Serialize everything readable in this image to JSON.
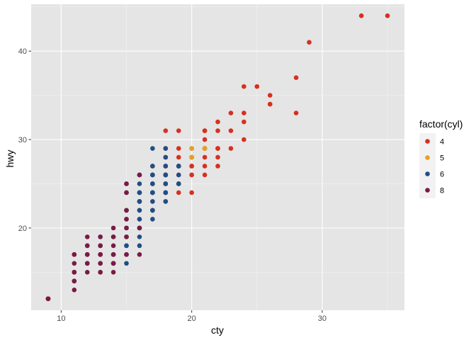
{
  "chart_data": {
    "type": "scatter",
    "title": "",
    "xlabel": "cty",
    "ylabel": "hwy",
    "xlim": [
      7.7,
      36.3
    ],
    "ylim": [
      10.7,
      45.3
    ],
    "x_ticks": [
      10,
      20,
      30
    ],
    "y_ticks": [
      20,
      30,
      40
    ],
    "x_tick_labels": [
      "10",
      "20",
      "30"
    ],
    "y_tick_labels": [
      "20",
      "30",
      "40"
    ],
    "grid": true,
    "background": "#e5e5e5",
    "grid_color": "#ffffff",
    "legend": {
      "title": "factor(cyl)",
      "position": "right",
      "labels": [
        "4",
        "5",
        "6",
        "8"
      ],
      "colors": [
        "#d7301f",
        "#e6a023",
        "#1f4e85",
        "#7a1a45"
      ]
    },
    "series": [
      {
        "name": "4",
        "color": "#d7301f",
        "points": [
          [
            35,
            44
          ],
          [
            33,
            44
          ],
          [
            29,
            41
          ],
          [
            28,
            37
          ],
          [
            26,
            35
          ],
          [
            25,
            36
          ],
          [
            26,
            34
          ],
          [
            24,
            36
          ],
          [
            24,
            33
          ],
          [
            23,
            33
          ],
          [
            22,
            32
          ],
          [
            24,
            32
          ],
          [
            26,
            34
          ],
          [
            28,
            33
          ],
          [
            24,
            30
          ],
          [
            21,
            31
          ],
          [
            21,
            30
          ],
          [
            22,
            31
          ],
          [
            22,
            29
          ],
          [
            21,
            29
          ],
          [
            20,
            29
          ],
          [
            21,
            28
          ],
          [
            20,
            28
          ],
          [
            22,
            29
          ],
          [
            23,
            31
          ],
          [
            20,
            27
          ],
          [
            21,
            27
          ],
          [
            19,
            27
          ],
          [
            18,
            26
          ],
          [
            19,
            26
          ],
          [
            18,
            27
          ],
          [
            19,
            29
          ],
          [
            20,
            26
          ],
          [
            18,
            25
          ],
          [
            19,
            25
          ],
          [
            17,
            27
          ],
          [
            18,
            29
          ],
          [
            19,
            31
          ],
          [
            21,
            26
          ],
          [
            22,
            27
          ],
          [
            18,
            24
          ],
          [
            17,
            23
          ],
          [
            17,
            22
          ],
          [
            18,
            23
          ],
          [
            19,
            24
          ],
          [
            20,
            24
          ],
          [
            16,
            20
          ],
          [
            18,
            26
          ],
          [
            19,
            28
          ],
          [
            21,
            29
          ],
          [
            20,
            27
          ],
          [
            22,
            28
          ],
          [
            18,
            31
          ],
          [
            21,
            29
          ],
          [
            23,
            29
          ],
          [
            20,
            28
          ],
          [
            17,
            24
          ],
          [
            16,
            21
          ],
          [
            18,
            27
          ],
          [
            21,
            31
          ],
          [
            19,
            27
          ],
          [
            18,
            25
          ],
          [
            19,
            25
          ],
          [
            18,
            26
          ],
          [
            22,
            29
          ],
          [
            20,
            26
          ]
        ]
      },
      {
        "name": "5",
        "color": "#e6a023",
        "points": [
          [
            20,
            29
          ],
          [
            20,
            28
          ],
          [
            21,
            29
          ],
          [
            21,
            29
          ]
        ]
      },
      {
        "name": "6",
        "color": "#1f4e85",
        "points": [
          [
            18,
            29
          ],
          [
            18,
            28
          ],
          [
            18,
            27
          ],
          [
            17,
            26
          ],
          [
            16,
            25
          ],
          [
            17,
            24
          ],
          [
            18,
            26
          ],
          [
            19,
            27
          ],
          [
            17,
            25
          ],
          [
            18,
            25
          ],
          [
            19,
            25
          ],
          [
            17,
            26
          ],
          [
            16,
            26
          ],
          [
            16,
            24
          ],
          [
            15,
            24
          ],
          [
            15,
            25
          ],
          [
            16,
            23
          ],
          [
            17,
            24
          ],
          [
            18,
            24
          ],
          [
            18,
            23
          ],
          [
            17,
            22
          ],
          [
            16,
            22
          ],
          [
            15,
            22
          ],
          [
            15,
            21
          ],
          [
            16,
            21
          ],
          [
            16,
            20
          ],
          [
            17,
            21
          ],
          [
            15,
            20
          ],
          [
            15,
            19
          ],
          [
            16,
            19
          ],
          [
            15,
            18
          ],
          [
            14,
            17
          ],
          [
            15,
            17
          ],
          [
            14,
            16
          ],
          [
            13,
            16
          ],
          [
            16,
            18
          ],
          [
            16,
            24
          ],
          [
            17,
            27
          ],
          [
            18,
            26
          ],
          [
            17,
            29
          ],
          [
            19,
            27
          ],
          [
            18,
            26
          ],
          [
            18,
            24
          ],
          [
            17,
            24
          ],
          [
            17,
            23
          ],
          [
            16,
            23
          ],
          [
            16,
            22
          ],
          [
            15,
            18
          ],
          [
            14,
            17
          ],
          [
            13,
            17
          ],
          [
            14,
            19
          ],
          [
            13,
            19
          ],
          [
            12,
            17
          ],
          [
            14,
            16
          ],
          [
            15,
            16
          ],
          [
            13,
            18
          ],
          [
            16,
            20
          ],
          [
            17,
            22
          ],
          [
            18,
            25
          ],
          [
            17,
            25
          ],
          [
            16,
            26
          ],
          [
            17,
            26
          ],
          [
            18,
            28
          ],
          [
            19,
            26
          ],
          [
            19,
            25
          ],
          [
            18,
            24
          ],
          [
            17,
            22
          ],
          [
            16,
            23
          ],
          [
            15,
            22
          ],
          [
            16,
            24
          ],
          [
            17,
            25
          ],
          [
            17,
            26
          ],
          [
            18,
            26
          ],
          [
            17,
            24
          ],
          [
            16,
            23
          ]
        ]
      },
      {
        "name": "8",
        "color": "#7a1a45",
        "points": [
          [
            9,
            12
          ],
          [
            9,
            12
          ],
          [
            9,
            12
          ],
          [
            9,
            12
          ],
          [
            9,
            12
          ],
          [
            11,
            15
          ],
          [
            11,
            15
          ],
          [
            11,
            14
          ],
          [
            11,
            14
          ],
          [
            11,
            15
          ],
          [
            11,
            15
          ],
          [
            11,
            16
          ],
          [
            11,
            17
          ],
          [
            11,
            17
          ],
          [
            11,
            17
          ],
          [
            12,
            17
          ],
          [
            12,
            16
          ],
          [
            12,
            18
          ],
          [
            12,
            17
          ],
          [
            12,
            17
          ],
          [
            12,
            16
          ],
          [
            13,
            18
          ],
          [
            13,
            17
          ],
          [
            13,
            17
          ],
          [
            13,
            19
          ],
          [
            13,
            16
          ],
          [
            13,
            17
          ],
          [
            13,
            17
          ],
          [
            14,
            20
          ],
          [
            14,
            19
          ],
          [
            14,
            18
          ],
          [
            14,
            17
          ],
          [
            14,
            17
          ],
          [
            14,
            16
          ],
          [
            14,
            16
          ],
          [
            13,
            16
          ],
          [
            12,
            18
          ],
          [
            12,
            19
          ],
          [
            13,
            18
          ],
          [
            14,
            16
          ],
          [
            15,
            19
          ],
          [
            15,
            17
          ],
          [
            16,
            17
          ],
          [
            15,
            22
          ],
          [
            15,
            24
          ],
          [
            15,
            25
          ],
          [
            16,
            26
          ],
          [
            15,
            21
          ],
          [
            16,
            20
          ],
          [
            15,
            17
          ],
          [
            14,
            15
          ],
          [
            13,
            15
          ],
          [
            12,
            16
          ],
          [
            11,
            14
          ],
          [
            11,
            13
          ],
          [
            12,
            15
          ],
          [
            13,
            15
          ],
          [
            14,
            17
          ],
          [
            15,
            20
          ]
        ]
      }
    ]
  }
}
